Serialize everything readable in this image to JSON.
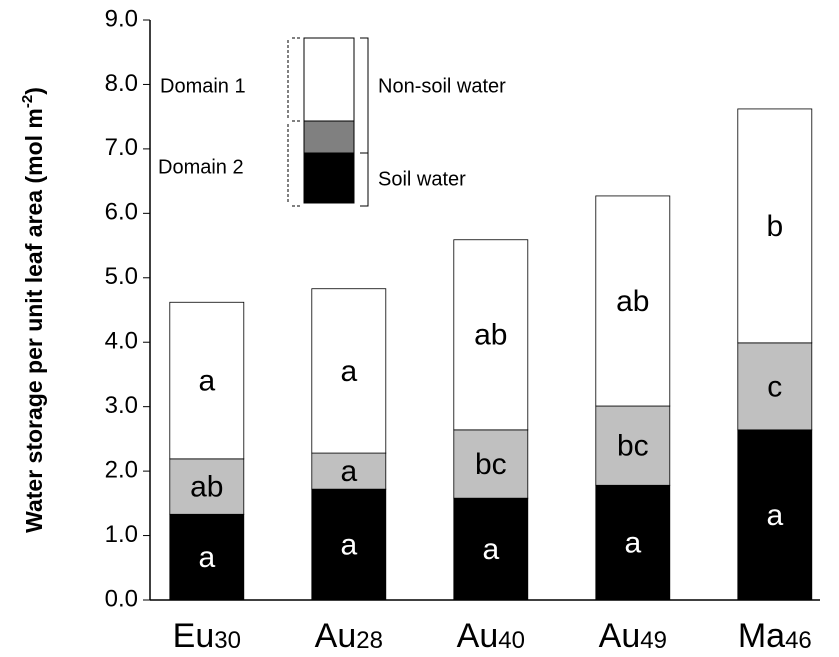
{
  "chart_data": {
    "type": "stacked-bar",
    "y_label": {
      "text": "Water storage per unit leaf area (mol m",
      "sup": "-2",
      "end": ")"
    },
    "categories": [
      {
        "text": "Eu",
        "sub": "30"
      },
      {
        "text": "Au",
        "sub": "28"
      },
      {
        "text": "Au",
        "sub": "40"
      },
      {
        "text": "Au",
        "sub": "49"
      },
      {
        "text": "Ma",
        "sub": "46"
      }
    ],
    "series": [
      {
        "color": "#000000",
        "text_color": "#ffffff",
        "values": [
          1.33,
          1.72,
          1.58,
          1.78,
          2.64
        ],
        "letters": [
          "a",
          "a",
          "a",
          "a",
          "a"
        ]
      },
      {
        "color": "#c0c0c0",
        "text_color": "#000000",
        "values": [
          0.86,
          0.56,
          1.06,
          1.23,
          1.35
        ],
        "letters": [
          "ab",
          "a",
          "bc",
          "bc",
          "c"
        ]
      },
      {
        "color": "#ffffff",
        "text_color": "#000000",
        "values": [
          2.43,
          2.55,
          2.95,
          3.26,
          3.63
        ],
        "letters": [
          "a",
          "a",
          "ab",
          "ab",
          "b"
        ]
      }
    ],
    "ylim": [
      0,
      9
    ],
    "yticks": [
      {
        "value": 0,
        "label": "0.0"
      },
      {
        "value": 1,
        "label": "1.0"
      },
      {
        "value": 2,
        "label": "2.0"
      },
      {
        "value": 3,
        "label": "3.0"
      },
      {
        "value": 4,
        "label": "4.0"
      },
      {
        "value": 5,
        "label": "5.0"
      },
      {
        "value": 6,
        "label": "6.0"
      },
      {
        "value": 7,
        "label": "7.0"
      },
      {
        "value": 8,
        "label": "8.0"
      },
      {
        "value": 9,
        "label": "9.0"
      }
    ],
    "grid": false,
    "annotations": {
      "domain1": "Domain 1",
      "domain2": "Domain 2",
      "non_soil": "Non-soil water",
      "soil": "Soil water"
    }
  }
}
